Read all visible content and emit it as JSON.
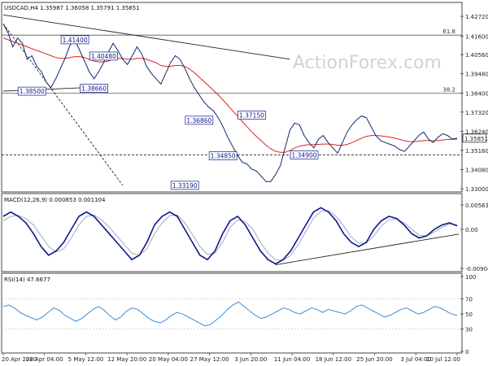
{
  "chart_data": {
    "type": "line",
    "title": "USDCAD,H4  1.35987 1.36058 1.35791 1.35851",
    "watermark": "ActionForex.com",
    "x_labels": [
      "20 Apr 2020",
      "28 Apr 04:00",
      "5 May 12:00",
      "12 May 20:00",
      "20 May 04:00",
      "27 May 12:00",
      "3 Jun 20:00",
      "11 Jun 04:00",
      "18 Jun 12:00",
      "25 Jun 20:00",
      "3 Jul 04:00",
      "10 Jul 12:00"
    ],
    "price": {
      "ylim": [
        1.33,
        1.43
      ],
      "y_ticks": [
        "1.42720",
        "1.41600",
        "1.40560",
        "1.39480",
        "1.38400",
        "1.37320",
        "1.36240",
        "1.35160",
        "1.34080",
        "1.33000"
      ],
      "current_price": "1.35851",
      "close": [
        1.423,
        1.418,
        1.41,
        1.415,
        1.412,
        1.403,
        1.405,
        1.399,
        1.396,
        1.39,
        1.387,
        1.392,
        1.398,
        1.404,
        1.411,
        1.414,
        1.408,
        1.402,
        1.396,
        1.392,
        1.396,
        1.401,
        1.407,
        1.412,
        1.408,
        1.403,
        1.4,
        1.405,
        1.41,
        1.406,
        1.399,
        1.395,
        1.392,
        1.389,
        1.395,
        1.401,
        1.405,
        1.403,
        1.398,
        1.392,
        1.387,
        1.383,
        1.379,
        1.376,
        1.374,
        1.37,
        1.365,
        1.359,
        1.354,
        1.349,
        1.345,
        1.344,
        1.341,
        1.34,
        1.337,
        1.334,
        1.334,
        1.338,
        1.343,
        1.353,
        1.363,
        1.367,
        1.366,
        1.36,
        1.356,
        1.353,
        1.358,
        1.36,
        1.356,
        1.353,
        1.35,
        1.356,
        1.362,
        1.366,
        1.369,
        1.371,
        1.37,
        1.365,
        1.36,
        1.357,
        1.356,
        1.355,
        1.354,
        1.352,
        1.351,
        1.354,
        1.357,
        1.36,
        1.362,
        1.358,
        1.356,
        1.359,
        1.361,
        1.36,
        1.358,
        1.3585
      ],
      "ma": [
        1.415,
        1.414,
        1.413,
        1.412,
        1.411,
        1.41,
        1.409,
        1.408,
        1.407,
        1.406,
        1.405,
        1.404,
        1.4035,
        1.4035,
        1.404,
        1.4045,
        1.4045,
        1.404,
        1.403,
        1.402,
        1.4015,
        1.4015,
        1.402,
        1.403,
        1.4035,
        1.4035,
        1.403,
        1.403,
        1.4035,
        1.4035,
        1.403,
        1.402,
        1.401,
        1.3995,
        1.399,
        1.399,
        1.3995,
        1.3995,
        1.399,
        1.3975,
        1.3955,
        1.393,
        1.3905,
        1.388,
        1.3855,
        1.383,
        1.38,
        1.377,
        1.374,
        1.371,
        1.368,
        1.365,
        1.362,
        1.3595,
        1.357,
        1.3545,
        1.3525,
        1.351,
        1.3505,
        1.3505,
        1.3515,
        1.353,
        1.354,
        1.3545,
        1.3548,
        1.3548,
        1.355,
        1.3552,
        1.3552,
        1.355,
        1.3545,
        1.3545,
        1.355,
        1.356,
        1.3572,
        1.3585,
        1.3595,
        1.36,
        1.36,
        1.3598,
        1.3595,
        1.359,
        1.3585,
        1.3578,
        1.357,
        1.3566,
        1.3565,
        1.3568,
        1.3572,
        1.3572,
        1.357,
        1.3572,
        1.3575,
        1.3578,
        1.3578,
        1.358
      ],
      "levels": [
        {
          "label": "61.8",
          "value": 1.4166,
          "color": "#555555"
        },
        {
          "label": "38.2",
          "value": 1.3838,
          "color": "#555555"
        },
        {
          "label": "",
          "value": 1.349,
          "color": "#222222",
          "dashed": true
        }
      ],
      "trendlines": [
        {
          "from": [
            0,
            1.428
          ],
          "to": [
            60,
            1.403
          ],
          "color": "#222222",
          "dashed": false
        },
        {
          "from": [
            0,
            1.385
          ],
          "to": [
            22,
            1.3876
          ],
          "color": "#222222",
          "dashed": false
        },
        {
          "from": [
            0,
            1.423
          ],
          "to": [
            25,
            1.3319
          ],
          "color": "#222222",
          "dashed": true
        }
      ],
      "annotations": [
        {
          "text": "1.41400",
          "x": 15,
          "y": 1.414
        },
        {
          "text": "1.40480",
          "x": 21,
          "y": 1.4048
        },
        {
          "text": "1.38500",
          "x": 6,
          "y": 1.385
        },
        {
          "text": "1.38660",
          "x": 19,
          "y": 1.3866
        },
        {
          "text": "1.36860",
          "x": 41,
          "y": 1.3686
        },
        {
          "text": "1.37150",
          "x": 52,
          "y": 1.3715
        },
        {
          "text": "1.33190",
          "x": 38,
          "y": 1.3319
        },
        {
          "text": "1.34850",
          "x": 46,
          "y": 1.3485
        },
        {
          "text": "1.34900",
          "x": 63,
          "y": 1.349
        }
      ]
    },
    "macd": {
      "title": "MACD(12,26,9) 0.000853 0.001104",
      "ylim": [
        -0.009041,
        0.005632
      ],
      "y_ticks": [
        "0.005632",
        "0.00",
        "-0.009041"
      ],
      "main": [
        0.003,
        0.004,
        0.003,
        0.0015,
        -0.001,
        -0.004,
        -0.006,
        -0.005,
        -0.003,
        0.0,
        0.003,
        0.004,
        0.003,
        0.001,
        -0.001,
        -0.003,
        -0.005,
        -0.007,
        -0.006,
        -0.003,
        0.001,
        0.003,
        0.004,
        0.003,
        0.0,
        -0.003,
        -0.006,
        -0.007,
        -0.005,
        -0.001,
        0.002,
        0.003,
        0.001,
        -0.002,
        -0.005,
        -0.007,
        -0.008,
        -0.007,
        -0.005,
        -0.002,
        0.001,
        0.004,
        0.005,
        0.004,
        0.002,
        -0.001,
        -0.003,
        -0.004,
        -0.003,
        0.0,
        0.002,
        0.003,
        0.0025,
        0.001,
        -0.001,
        -0.002,
        -0.0015,
        0.0,
        0.001,
        0.0015,
        0.0008
      ],
      "signal": [
        0.002,
        0.003,
        0.0032,
        0.0025,
        0.001,
        -0.0015,
        -0.004,
        -0.0052,
        -0.0045,
        -0.002,
        0.001,
        0.003,
        0.0033,
        0.0022,
        0.0005,
        -0.0015,
        -0.0035,
        -0.0055,
        -0.006,
        -0.0045,
        -0.001,
        0.0015,
        0.0032,
        0.0033,
        0.0015,
        -0.0012,
        -0.004,
        -0.0058,
        -0.0055,
        -0.003,
        0.0005,
        0.0022,
        0.0018,
        0.0,
        -0.003,
        -0.0055,
        -0.007,
        -0.0072,
        -0.006,
        -0.0035,
        -0.0005,
        0.0025,
        0.0042,
        0.0043,
        0.003,
        0.0008,
        -0.0018,
        -0.0032,
        -0.0032,
        -0.0015,
        0.0008,
        0.0022,
        0.0024,
        0.0015,
        0.0,
        -0.0014,
        -0.0015,
        -0.0006,
        0.0005,
        0.0012,
        0.0011
      ],
      "trendline": {
        "from": [
          36,
          -0.0082
        ],
        "to": [
          60,
          -0.0011
        ]
      }
    },
    "rsi": {
      "title": "RSI(14) 47.6677",
      "ylim": [
        0,
        100
      ],
      "y_ticks": [
        "100",
        "70",
        "50",
        "30",
        "0"
      ],
      "values": [
        60,
        62,
        58,
        52,
        48,
        45,
        42,
        46,
        52,
        58,
        55,
        48,
        44,
        40,
        44,
        50,
        56,
        60,
        55,
        48,
        42,
        46,
        54,
        58,
        56,
        50,
        44,
        40,
        38,
        42,
        48,
        52,
        50,
        46,
        42,
        38,
        34,
        36,
        42,
        48,
        56,
        62,
        66,
        60,
        54,
        48,
        44,
        46,
        50,
        54,
        58,
        56,
        52,
        50,
        54,
        58,
        56,
        52,
        56,
        54,
        52,
        50,
        54,
        60,
        62,
        58,
        54,
        50,
        46,
        48,
        52,
        56,
        58,
        54,
        50,
        52,
        56,
        60,
        58,
        54,
        50,
        48
      ]
    }
  }
}
